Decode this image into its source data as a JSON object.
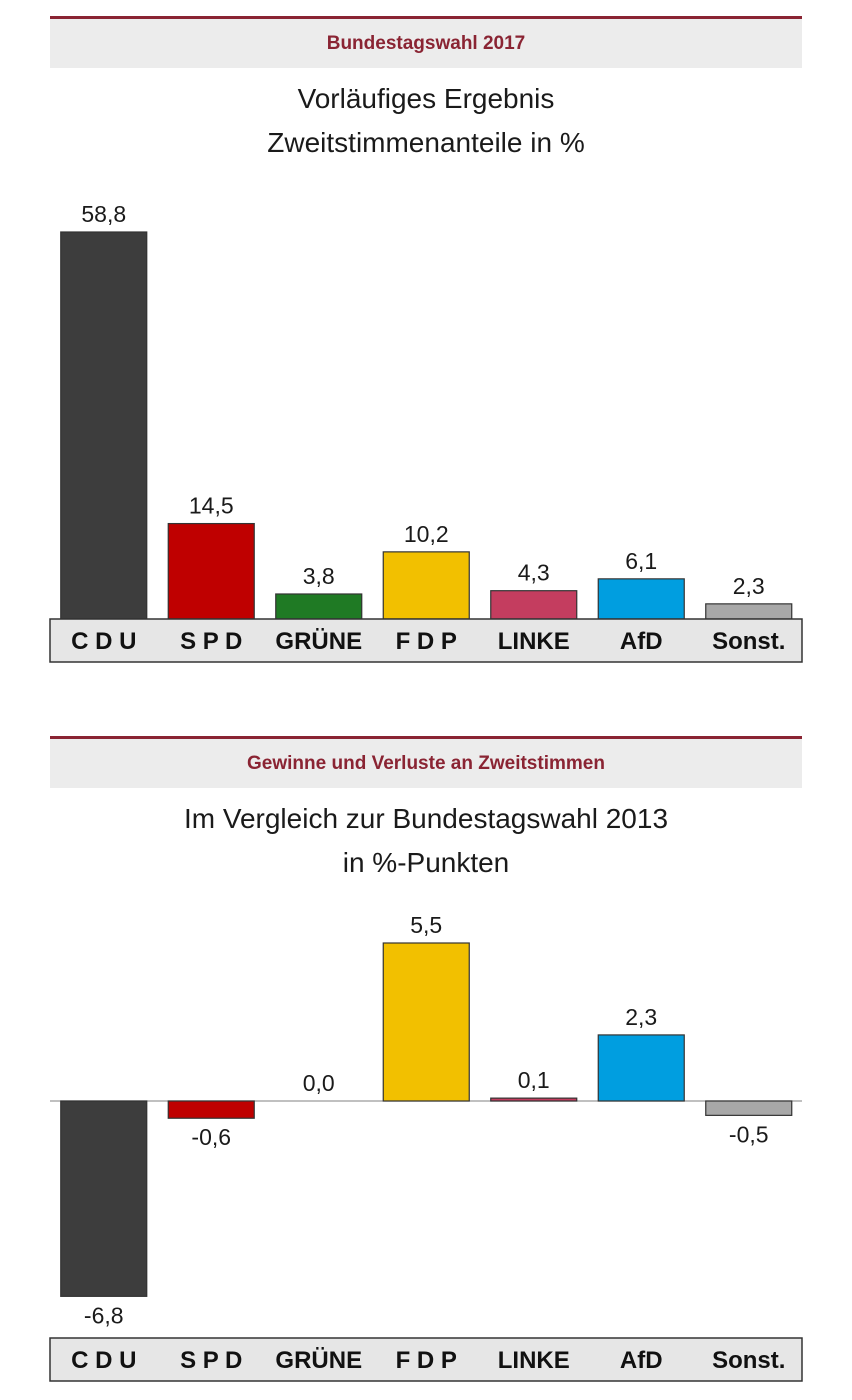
{
  "charts": [
    {
      "header": "Bundestagswahl 2017",
      "title_line1": "Vorläufiges Ergebnis",
      "title_line2": "Zweitstimmenanteile in %"
    },
    {
      "header": "Gewinne und Verluste an Zweitstimmen",
      "title_line1": "Im Vergleich zur Bundestagswahl 2013",
      "title_line2": "in %-Punkten"
    }
  ],
  "chart_data": [
    {
      "type": "bar",
      "title": "Vorläufiges Ergebnis Zweitstimmenanteile in %",
      "categories": [
        "C D U",
        "S P D",
        "GRÜNE",
        "F D P",
        "LINKE",
        "AfD",
        "Sonst."
      ],
      "values": [
        58.8,
        14.5,
        3.8,
        10.2,
        4.3,
        6.1,
        2.3
      ],
      "value_labels": [
        "58,8",
        "14,5",
        "3,8",
        "10,2",
        "4,3",
        "6,1",
        "2,3"
      ],
      "colors": [
        "#3d3d3d",
        "#bf0000",
        "#1f7a24",
        "#f2c000",
        "#c43d5f",
        "#009ee0",
        "#a8a8a8"
      ],
      "ylim": [
        0,
        58.8
      ],
      "grid": false,
      "legend": "none"
    },
    {
      "type": "bar",
      "title": "Im Vergleich zur Bundestagswahl 2013 in %-Punkten",
      "categories": [
        "C D U",
        "S P D",
        "GRÜNE",
        "F D P",
        "LINKE",
        "AfD",
        "Sonst."
      ],
      "values": [
        -6.8,
        -0.6,
        0.0,
        5.5,
        0.1,
        2.3,
        -0.5
      ],
      "value_labels": [
        "-6,8",
        "-0,6",
        "0,0",
        "5,5",
        "0,1",
        "2,3",
        "-0,5"
      ],
      "colors": [
        "#3d3d3d",
        "#bf0000",
        "#1f7a24",
        "#f2c000",
        "#c43d5f",
        "#009ee0",
        "#a8a8a8"
      ],
      "ylim": [
        -6.8,
        5.5
      ],
      "grid": false,
      "legend": "none"
    }
  ]
}
